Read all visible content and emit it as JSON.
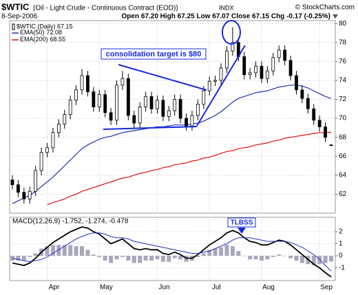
{
  "header": {
    "symbol": "$WTIC",
    "description": "(Oil - Light Crude - Continuous Contract (EOD))",
    "exchange": "INDX",
    "copyright": "© StockCharts.com",
    "date": "8-Sep-2006",
    "quote": "Open 67.20 High 67.25 Low 67.07 Close 67.15 Chg -0.17 (-0.25%)"
  },
  "chart_data": [
    {
      "type": "candlestick",
      "title": "$WTIC (Daily) 67.15",
      "annotations": [
        "consolidation target is $80"
      ],
      "categories": [
        null,
        null,
        null,
        null,
        null,
        null,
        "Apr",
        null,
        null,
        null,
        null,
        null,
        null,
        null,
        null,
        "May",
        null,
        null,
        null,
        null,
        null,
        null,
        null,
        null,
        null,
        "Jun",
        null,
        null,
        null,
        null,
        null,
        null,
        null,
        null,
        "Jul",
        null,
        null,
        null,
        null,
        null,
        null,
        null,
        null,
        "Aug",
        null,
        null,
        null,
        null,
        null,
        null,
        null,
        null,
        null,
        "Sep",
        null,
        null
      ],
      "open": [
        63.5,
        63.0,
        62.2,
        61.5,
        62.3,
        64.5,
        66.4,
        66.9,
        68.5,
        69.4,
        70.4,
        71.9,
        73.0,
        74.5,
        72.8,
        71.2,
        72.5,
        70.6,
        69.8,
        73.5,
        74.2,
        70.3,
        69.5,
        71.2,
        72.3,
        71.0,
        71.9,
        70.2,
        70.8,
        72.0,
        70.0,
        69.2,
        70.3,
        71.5,
        72.9,
        73.9,
        74.0,
        75.3,
        77.1,
        78.0,
        76.5,
        74.6,
        74.8,
        75.5,
        74.2,
        75.0,
        76.4,
        77.2,
        76.1,
        74.5,
        73.0,
        72.1,
        71.0,
        69.8,
        69.1,
        67.2
      ],
      "high": [
        64.0,
        63.5,
        62.7,
        62.8,
        65.0,
        66.9,
        67.4,
        69.0,
        69.9,
        70.9,
        72.4,
        73.5,
        75.2,
        75.0,
        73.3,
        73.0,
        73.0,
        71.1,
        74.0,
        75.0,
        74.7,
        70.8,
        71.7,
        72.8,
        72.8,
        72.4,
        72.4,
        71.3,
        72.5,
        72.5,
        70.5,
        70.8,
        72.0,
        73.4,
        74.4,
        74.5,
        75.8,
        77.6,
        79.6,
        78.5,
        77.0,
        75.3,
        76.0,
        76.0,
        75.5,
        76.9,
        77.7,
        77.7,
        76.6,
        75.0,
        73.5,
        72.6,
        71.5,
        70.3,
        69.6,
        67.25
      ],
      "low": [
        62.5,
        61.7,
        61.0,
        61.0,
        61.8,
        64.0,
        65.9,
        66.4,
        68.0,
        68.9,
        69.9,
        71.4,
        72.5,
        72.3,
        70.7,
        70.7,
        70.1,
        69.3,
        69.3,
        73.0,
        69.8,
        69.0,
        69.0,
        70.7,
        70.5,
        70.5,
        69.7,
        69.7,
        70.3,
        69.5,
        68.7,
        68.7,
        69.8,
        71.0,
        72.4,
        73.4,
        73.5,
        74.8,
        76.6,
        76.0,
        74.1,
        74.1,
        74.3,
        73.7,
        73.7,
        74.5,
        75.9,
        75.6,
        74.0,
        72.5,
        71.6,
        70.5,
        69.3,
        68.6,
        67.5,
        67.07
      ],
      "close": [
        63.0,
        62.2,
        61.5,
        62.3,
        64.5,
        66.4,
        66.9,
        68.5,
        69.4,
        70.4,
        71.9,
        73.0,
        74.5,
        72.8,
        71.2,
        72.5,
        70.6,
        69.8,
        73.5,
        74.2,
        70.3,
        69.5,
        71.2,
        72.3,
        71.0,
        71.9,
        70.2,
        70.8,
        72.0,
        70.0,
        69.2,
        70.3,
        71.5,
        72.9,
        73.9,
        74.0,
        75.3,
        77.1,
        78.0,
        76.5,
        74.6,
        74.8,
        75.5,
        74.2,
        75.0,
        76.4,
        77.2,
        76.1,
        74.5,
        73.0,
        72.1,
        71.0,
        69.8,
        69.1,
        68.0,
        67.15
      ],
      "series": [
        {
          "name": "EMA(50)",
          "value_label": "72.08",
          "color": "#1f2fb4",
          "values": [
            61.0,
            61.3,
            61.6,
            61.9,
            62.3,
            62.8,
            63.3,
            63.8,
            64.4,
            65.0,
            65.6,
            66.2,
            66.8,
            67.2,
            67.5,
            67.8,
            68.0,
            68.1,
            68.3,
            68.5,
            68.6,
            68.7,
            68.8,
            68.9,
            69.0,
            69.1,
            69.1,
            69.2,
            69.3,
            69.3,
            69.3,
            69.4,
            69.5,
            69.7,
            70.0,
            70.3,
            70.7,
            71.2,
            71.7,
            72.1,
            72.3,
            72.5,
            72.7,
            72.8,
            72.9,
            73.1,
            73.3,
            73.4,
            73.5,
            73.5,
            73.4,
            73.2,
            72.9,
            72.6,
            72.3,
            72.08
          ]
        },
        {
          "name": "EMA(200)",
          "value_label": "68.55",
          "color": "#e01010",
          "values": [
            null,
            null,
            null,
            null,
            null,
            null,
            60.9,
            61.1,
            61.3,
            61.5,
            61.8,
            62.0,
            62.3,
            62.5,
            62.7,
            62.9,
            63.1,
            63.3,
            63.5,
            63.7,
            63.8,
            64.0,
            64.2,
            64.3,
            64.5,
            64.6,
            64.8,
            64.9,
            65.1,
            65.2,
            65.3,
            65.5,
            65.6,
            65.8,
            65.9,
            66.1,
            66.3,
            66.5,
            66.6,
            66.8,
            66.9,
            67.0,
            67.2,
            67.3,
            67.4,
            67.6,
            67.7,
            67.9,
            68.0,
            68.1,
            68.2,
            68.3,
            68.4,
            68.5,
            68.5,
            68.55
          ]
        }
      ],
      "ylim": [
        60,
        80.3
      ],
      "yticks": [
        62,
        64,
        66,
        68,
        70,
        72,
        74,
        76,
        78,
        80
      ],
      "grid": true
    },
    {
      "type": "macd",
      "title": "MACD(12,26,9) -1.752, -1.274, -0.478",
      "annotations": [
        "TLBSS"
      ],
      "series": [
        {
          "name": "MACD",
          "color": "#000000",
          "values": [
            -0.6,
            -0.7,
            -0.8,
            -0.6,
            -0.2,
            0.3,
            0.7,
            1.1,
            1.4,
            1.7,
            2.0,
            2.2,
            2.4,
            2.3,
            2.0,
            1.8,
            1.4,
            1.0,
            1.2,
            1.4,
            1.0,
            0.6,
            0.5,
            0.6,
            0.5,
            0.5,
            0.2,
            0.1,
            0.3,
            0.1,
            -0.2,
            -0.2,
            0.1,
            0.5,
            0.9,
            1.2,
            1.5,
            1.9,
            2.1,
            1.9,
            1.5,
            1.2,
            1.1,
            0.9,
            0.9,
            1.1,
            1.3,
            1.2,
            0.9,
            0.5,
            0.1,
            -0.3,
            -0.7,
            -1.0,
            -1.4,
            -1.752
          ]
        },
        {
          "name": "Signal",
          "color": "#2030c0",
          "values": [
            -0.2,
            -0.3,
            -0.4,
            -0.5,
            -0.4,
            -0.3,
            -0.1,
            0.2,
            0.5,
            0.8,
            1.1,
            1.4,
            1.6,
            1.8,
            1.9,
            1.9,
            1.8,
            1.6,
            1.5,
            1.5,
            1.4,
            1.2,
            1.1,
            1.0,
            0.9,
            0.8,
            0.7,
            0.6,
            0.5,
            0.4,
            0.3,
            0.2,
            0.2,
            0.3,
            0.4,
            0.6,
            0.8,
            1.0,
            1.3,
            1.5,
            1.5,
            1.5,
            1.4,
            1.3,
            1.2,
            1.2,
            1.2,
            1.2,
            1.1,
            0.9,
            0.7,
            0.4,
            0.1,
            -0.3,
            -0.8,
            -1.274
          ]
        }
      ],
      "histogram": {
        "color": "#a8a8bc",
        "values": [
          -0.4,
          -0.4,
          -0.4,
          -0.1,
          0.2,
          0.6,
          0.8,
          0.9,
          0.9,
          0.9,
          0.9,
          0.8,
          0.8,
          0.5,
          0.1,
          -0.1,
          -0.4,
          -0.6,
          -0.3,
          -0.1,
          -0.4,
          -0.6,
          -0.6,
          -0.4,
          -0.4,
          -0.3,
          -0.5,
          -0.5,
          -0.2,
          -0.3,
          -0.5,
          -0.4,
          -0.1,
          0.2,
          0.5,
          0.6,
          0.7,
          0.9,
          0.8,
          0.4,
          0.0,
          -0.3,
          -0.3,
          -0.4,
          -0.3,
          -0.1,
          0.1,
          0.0,
          -0.2,
          -0.4,
          -0.6,
          -0.7,
          -0.8,
          -0.7,
          -0.6,
          -0.478
        ]
      },
      "ylim": [
        -2.06,
        3.2
      ],
      "yticks": [
        2,
        1,
        0,
        -1
      ],
      "grid": true
    }
  ]
}
